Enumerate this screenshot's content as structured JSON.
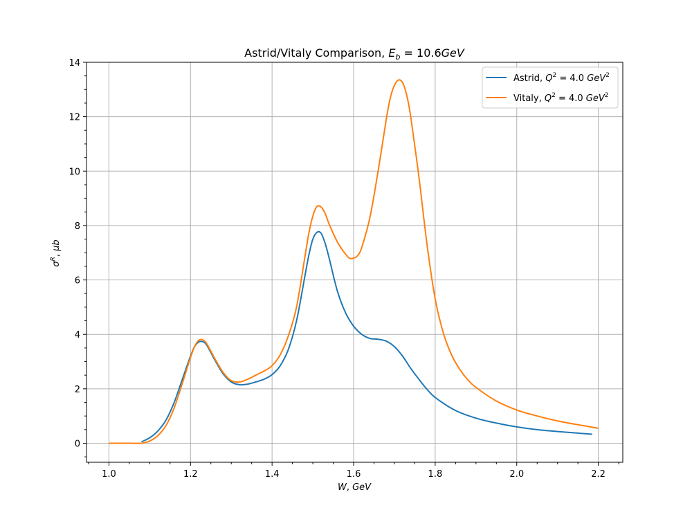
{
  "chart_data": {
    "type": "line",
    "title": "Astrid/Vitaly Comparison, E_b = 10.6GeV",
    "title_parts": {
      "prefix": "Astrid/Vitaly Comparison, ",
      "symbol": "E",
      "subscript": "b",
      "equals": " = 10.6",
      "unit": "GeV"
    },
    "xlabel": "W, GeV",
    "ylabel": "σ^R, μb",
    "xlim": [
      0.945,
      2.26
    ],
    "ylim": [
      -0.7,
      14
    ],
    "xticks": [
      "1.0",
      "1.2",
      "1.4",
      "1.6",
      "1.8",
      "2.0",
      "2.2"
    ],
    "yticks": [
      "0",
      "2",
      "4",
      "6",
      "8",
      "10",
      "12",
      "14"
    ],
    "grid": true,
    "legend_position": "top-right",
    "series": [
      {
        "name": "Astrid, Q^2 = 4.0 GeV^2",
        "label_prefix": "Astrid, ",
        "color": "#1f77b4",
        "x": [
          1.08,
          1.1,
          1.12,
          1.14,
          1.16,
          1.18,
          1.2,
          1.21,
          1.22,
          1.23,
          1.24,
          1.26,
          1.28,
          1.3,
          1.32,
          1.34,
          1.36,
          1.38,
          1.4,
          1.42,
          1.44,
          1.46,
          1.48,
          1.49,
          1.5,
          1.51,
          1.52,
          1.53,
          1.54,
          1.56,
          1.58,
          1.6,
          1.62,
          1.64,
          1.66,
          1.68,
          1.7,
          1.72,
          1.74,
          1.76,
          1.78,
          1.8,
          1.85,
          1.9,
          1.95,
          2.0,
          2.05,
          2.1,
          2.15,
          2.185
        ],
        "y": [
          0.05,
          0.2,
          0.45,
          0.85,
          1.5,
          2.35,
          3.2,
          3.55,
          3.72,
          3.73,
          3.6,
          3.05,
          2.55,
          2.25,
          2.15,
          2.17,
          2.25,
          2.35,
          2.52,
          2.85,
          3.45,
          4.5,
          6.1,
          6.9,
          7.5,
          7.75,
          7.72,
          7.35,
          6.8,
          5.6,
          4.8,
          4.3,
          4.0,
          3.85,
          3.82,
          3.75,
          3.55,
          3.2,
          2.75,
          2.35,
          1.98,
          1.68,
          1.2,
          0.92,
          0.74,
          0.6,
          0.5,
          0.43,
          0.37,
          0.33
        ]
      },
      {
        "name": "Vitaly, Q^2 = 4.0 GeV^2",
        "label_prefix": "Vitaly, ",
        "color": "#ff7f0e",
        "x": [
          1.0,
          1.05,
          1.08,
          1.1,
          1.12,
          1.14,
          1.16,
          1.18,
          1.2,
          1.21,
          1.22,
          1.23,
          1.24,
          1.26,
          1.28,
          1.3,
          1.32,
          1.34,
          1.36,
          1.38,
          1.4,
          1.42,
          1.44,
          1.46,
          1.48,
          1.49,
          1.5,
          1.51,
          1.52,
          1.53,
          1.54,
          1.56,
          1.58,
          1.59,
          1.6,
          1.61,
          1.62,
          1.64,
          1.66,
          1.68,
          1.69,
          1.7,
          1.71,
          1.72,
          1.73,
          1.74,
          1.76,
          1.78,
          1.8,
          1.82,
          1.84,
          1.86,
          1.88,
          1.9,
          1.95,
          2.0,
          2.05,
          2.1,
          2.15,
          2.2
        ],
        "y": [
          0.0,
          0.0,
          0.0,
          0.08,
          0.28,
          0.65,
          1.3,
          2.2,
          3.15,
          3.55,
          3.78,
          3.8,
          3.65,
          3.1,
          2.6,
          2.3,
          2.25,
          2.35,
          2.5,
          2.65,
          2.85,
          3.25,
          3.95,
          5.0,
          6.8,
          7.7,
          8.35,
          8.7,
          8.68,
          8.45,
          8.05,
          7.4,
          6.95,
          6.8,
          6.8,
          6.9,
          7.2,
          8.3,
          10.0,
          11.9,
          12.7,
          13.15,
          13.35,
          13.25,
          12.8,
          12.0,
          9.8,
          7.3,
          5.3,
          4.05,
          3.25,
          2.72,
          2.33,
          2.05,
          1.55,
          1.22,
          1.0,
          0.82,
          0.68,
          0.55
        ]
      }
    ]
  }
}
